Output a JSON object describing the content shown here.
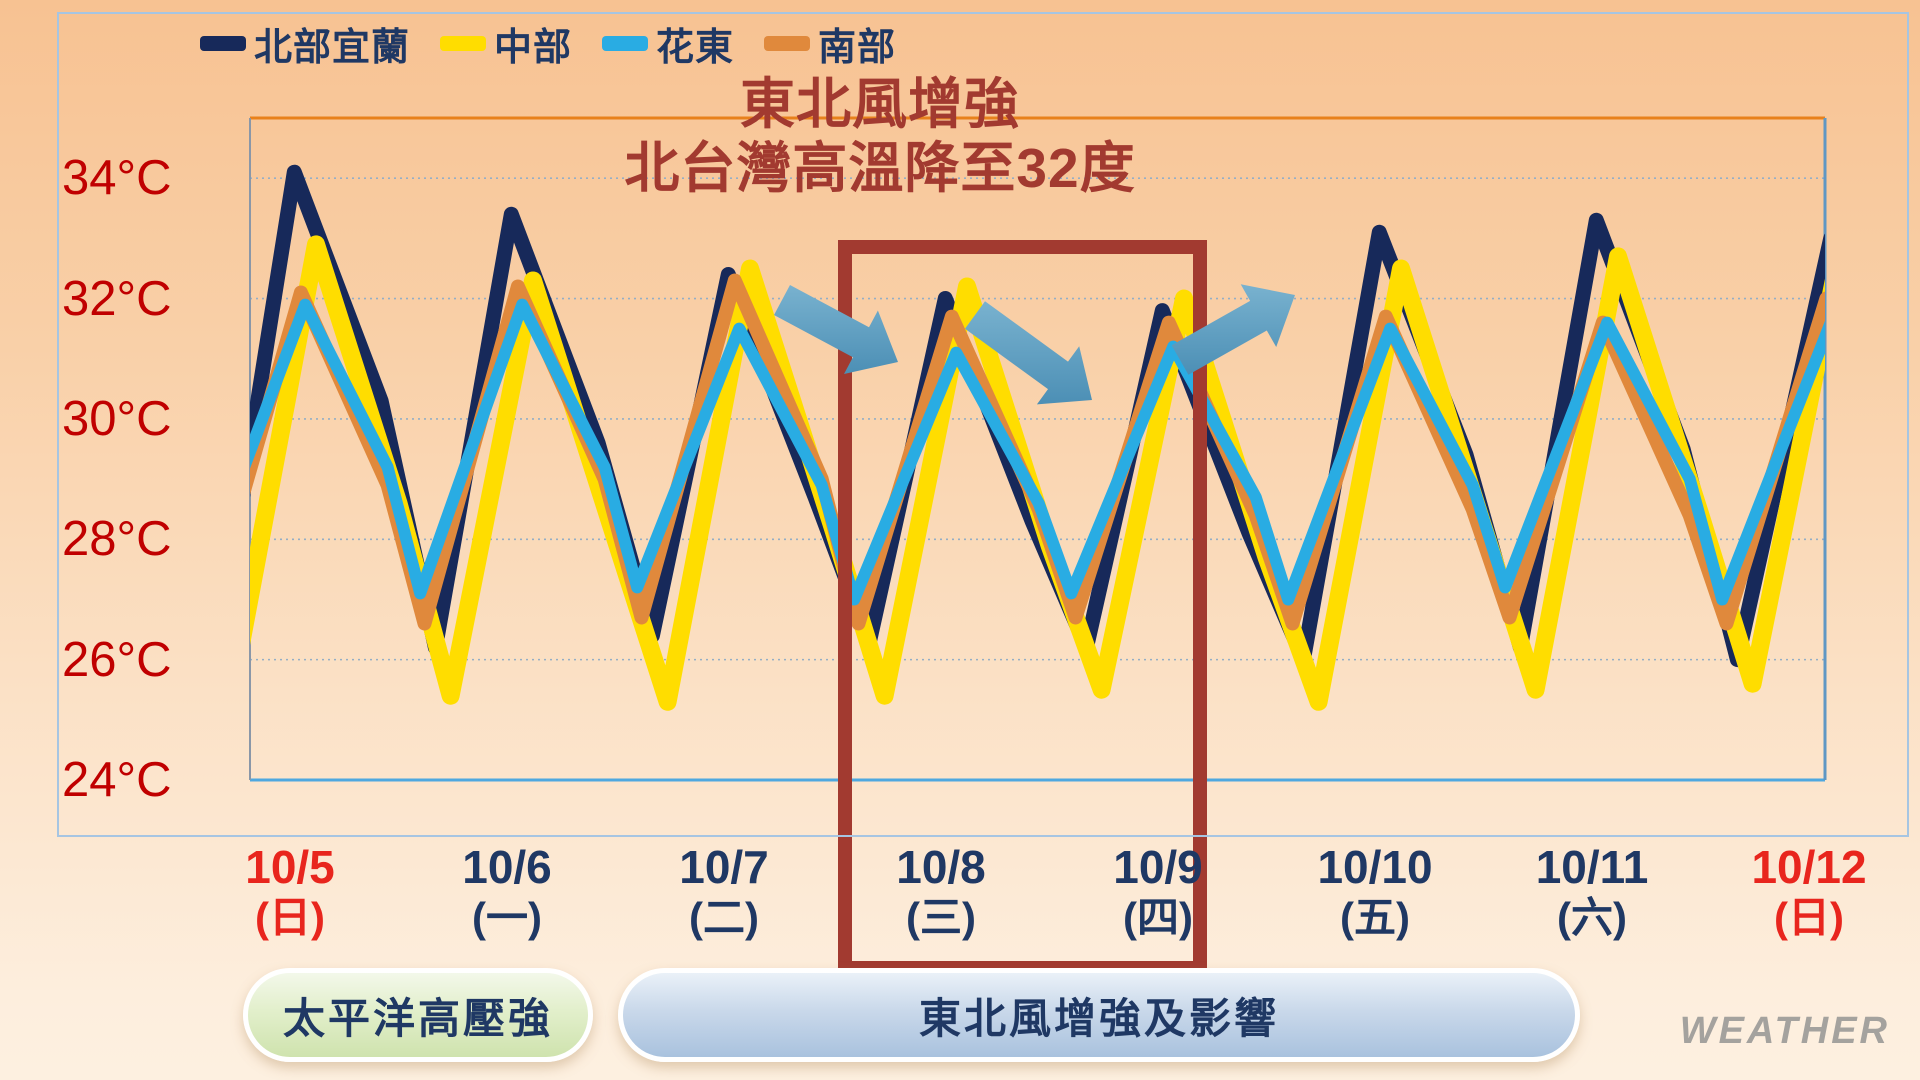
{
  "legend": {
    "items": [
      {
        "label": "北部宜蘭",
        "color": "#17295a"
      },
      {
        "label": "中部",
        "color": "#ffdd00"
      },
      {
        "label": "花東",
        "color": "#29ace3"
      },
      {
        "label": "南部",
        "color": "#e0893c"
      }
    ]
  },
  "title": {
    "line1": "東北風增強",
    "line2": "北台灣高溫降至32度",
    "color": "#a23a30"
  },
  "chart_data": {
    "type": "line",
    "unit": "°C",
    "ylim": [
      24,
      35
    ],
    "y_ticks": [
      34,
      32,
      30,
      28,
      26,
      24
    ],
    "y_tick_suffix": "°C",
    "grid": "horizontal-dotted",
    "legend_position": "top-left",
    "x_categories": [
      {
        "date": "10/5",
        "weekday": "(日)",
        "color": "#e8251d"
      },
      {
        "date": "10/6",
        "weekday": "(一)",
        "color": "#1f3864"
      },
      {
        "date": "10/7",
        "weekday": "(二)",
        "color": "#1f3864"
      },
      {
        "date": "10/8",
        "weekday": "(三)",
        "color": "#1f3864"
      },
      {
        "date": "10/9",
        "weekday": "(四)",
        "color": "#1f3864"
      },
      {
        "date": "10/10",
        "weekday": "(五)",
        "color": "#1f3864"
      },
      {
        "date": "10/11",
        "weekday": "(六)",
        "color": "#1f3864"
      },
      {
        "date": "10/12",
        "weekday": "(日)",
        "color": "#e8251d"
      }
    ],
    "x_axis_note": "t in days, 0 = 10/5 label center, 1 = 10/6, ... 7 = 10/12",
    "series": [
      {
        "name": "北部宜蘭",
        "color": "#17295a",
        "width": 15,
        "points": [
          [
            -0.33,
            26.2
          ],
          [
            0.02,
            34.1
          ],
          [
            0.42,
            30.3
          ],
          [
            0.67,
            26.2
          ],
          [
            1.02,
            33.4
          ],
          [
            1.42,
            29.6
          ],
          [
            1.67,
            26.4
          ],
          [
            2.02,
            32.4
          ],
          [
            2.42,
            28.7
          ],
          [
            2.67,
            26.3
          ],
          [
            3.02,
            32.0
          ],
          [
            3.42,
            28.3
          ],
          [
            3.67,
            26.2
          ],
          [
            4.02,
            31.8
          ],
          [
            4.42,
            28.1
          ],
          [
            4.67,
            26.0
          ],
          [
            5.02,
            33.1
          ],
          [
            5.42,
            29.4
          ],
          [
            5.67,
            26.2
          ],
          [
            6.02,
            33.3
          ],
          [
            6.42,
            29.5
          ],
          [
            6.67,
            26.0
          ],
          [
            7.1,
            33.0
          ]
        ]
      },
      {
        "name": "中部",
        "color": "#ffdd00",
        "width": 18,
        "points": [
          [
            -0.26,
            25.6
          ],
          [
            0.12,
            32.9
          ],
          [
            0.5,
            28.6
          ],
          [
            0.74,
            25.4
          ],
          [
            1.12,
            32.3
          ],
          [
            1.5,
            28.0
          ],
          [
            1.74,
            25.3
          ],
          [
            2.12,
            32.5
          ],
          [
            2.5,
            28.2
          ],
          [
            2.74,
            25.4
          ],
          [
            3.12,
            32.2
          ],
          [
            3.5,
            27.9
          ],
          [
            3.74,
            25.5
          ],
          [
            4.12,
            32.0
          ],
          [
            4.5,
            27.7
          ],
          [
            4.74,
            25.3
          ],
          [
            5.12,
            32.5
          ],
          [
            5.5,
            28.2
          ],
          [
            5.74,
            25.5
          ],
          [
            6.12,
            32.7
          ],
          [
            6.5,
            28.4
          ],
          [
            6.74,
            25.6
          ],
          [
            7.12,
            32.4
          ]
        ]
      },
      {
        "name": "南部",
        "color": "#e0893c",
        "width": 14,
        "points": [
          [
            -0.38,
            26.7
          ],
          [
            0.05,
            32.1
          ],
          [
            0.45,
            28.9
          ],
          [
            0.62,
            26.6
          ],
          [
            1.05,
            32.2
          ],
          [
            1.45,
            29.0
          ],
          [
            1.62,
            26.7
          ],
          [
            2.05,
            32.3
          ],
          [
            2.45,
            29.0
          ],
          [
            2.62,
            26.6
          ],
          [
            3.05,
            31.7
          ],
          [
            3.45,
            28.5
          ],
          [
            3.62,
            26.7
          ],
          [
            4.05,
            31.6
          ],
          [
            4.45,
            28.4
          ],
          [
            4.62,
            26.6
          ],
          [
            5.05,
            31.7
          ],
          [
            5.45,
            28.5
          ],
          [
            5.62,
            26.7
          ],
          [
            6.05,
            31.6
          ],
          [
            6.45,
            28.4
          ],
          [
            6.62,
            26.6
          ],
          [
            7.08,
            32.0
          ]
        ]
      },
      {
        "name": "花東",
        "color": "#29ace3",
        "width": 12,
        "points": [
          [
            -0.42,
            27.2
          ],
          [
            0.07,
            31.9
          ],
          [
            0.45,
            29.2
          ],
          [
            0.6,
            27.1
          ],
          [
            1.07,
            31.9
          ],
          [
            1.45,
            29.2
          ],
          [
            1.6,
            27.2
          ],
          [
            2.07,
            31.5
          ],
          [
            2.45,
            28.9
          ],
          [
            2.6,
            27.0
          ],
          [
            3.07,
            31.1
          ],
          [
            3.45,
            28.6
          ],
          [
            3.6,
            27.1
          ],
          [
            4.07,
            31.2
          ],
          [
            4.45,
            28.7
          ],
          [
            4.6,
            27.0
          ],
          [
            5.07,
            31.5
          ],
          [
            5.45,
            28.9
          ],
          [
            5.6,
            27.2
          ],
          [
            6.07,
            31.6
          ],
          [
            6.45,
            29.0
          ],
          [
            6.6,
            27.0
          ],
          [
            7.1,
            31.6
          ]
        ]
      }
    ],
    "annotations": {
      "highlight_box": {
        "from": "10/8",
        "to": "10/9",
        "color": "#a23a30"
      },
      "arrows": [
        {
          "direction": "down-right",
          "color": "#5c9ec0"
        },
        {
          "direction": "down-right",
          "color": "#5c9ec0"
        },
        {
          "direction": "up-right",
          "color": "#5c9ec0"
        }
      ]
    },
    "plot_border_colors": {
      "top": "#e8811c",
      "bottom": "#4fa8df",
      "left": "#8a97a8",
      "right": "#5f97c4"
    },
    "gridline_color": "#94aec6"
  },
  "footer": {
    "pills": [
      {
        "label": "太平洋高壓強",
        "theme": "green"
      },
      {
        "label": "東北風增強及影響",
        "theme": "blue"
      }
    ]
  },
  "watermark": {
    "text": "WEATHER"
  }
}
